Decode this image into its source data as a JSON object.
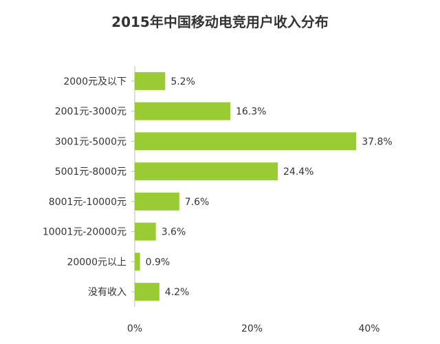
{
  "chart_data": {
    "type": "bar",
    "orientation": "horizontal",
    "title": "2015年中国移动电竞用户收入分布",
    "categories": [
      "2000元及以下",
      "2001元-3000元",
      "3001元-5000元",
      "5001元-8000元",
      "8001元-10000元",
      "10001元-20000元",
      "20000元以上",
      "没有收入"
    ],
    "values": [
      5.2,
      16.3,
      37.8,
      24.4,
      7.6,
      3.6,
      0.9,
      4.2
    ],
    "value_labels": [
      "5.2%",
      "16.3%",
      "37.8%",
      "24.4%",
      "7.6%",
      "3.6%",
      "0.9%",
      "4.2%"
    ],
    "xlim": [
      0,
      40
    ],
    "xticks": [
      0,
      20,
      40
    ],
    "xtick_labels": [
      "0%",
      "20%",
      "40%"
    ],
    "xlabel": "",
    "ylabel": "",
    "grid": false,
    "legend": "none",
    "bar_color": "#99cc33",
    "axis_color": "#bbbbbb"
  }
}
